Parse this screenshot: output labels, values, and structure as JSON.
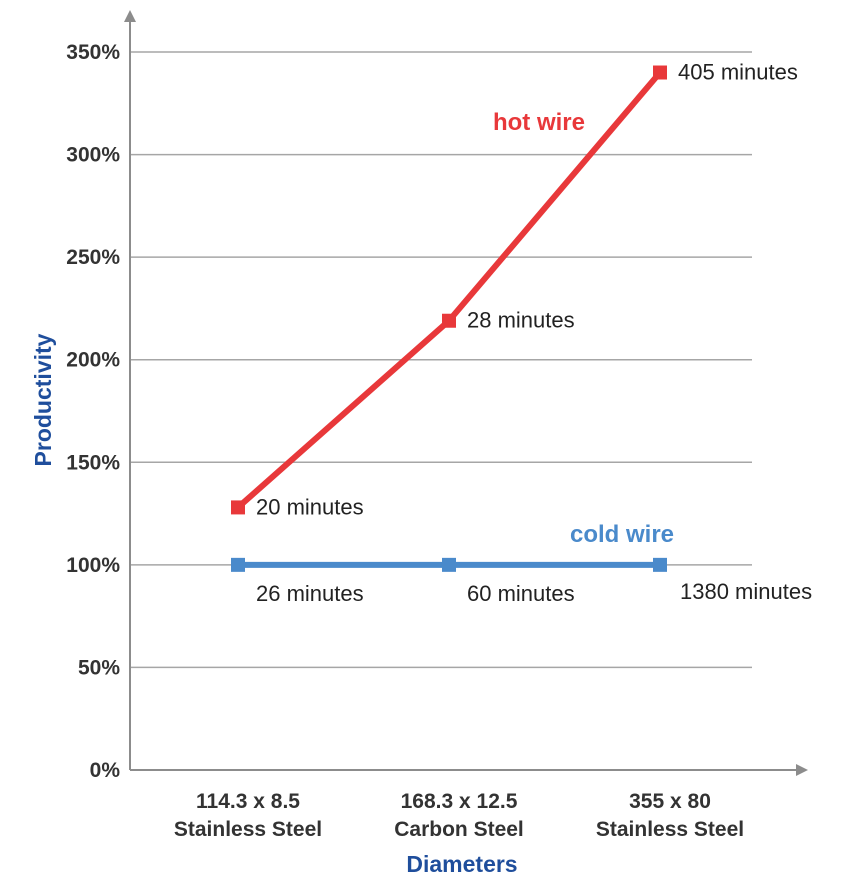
{
  "chart_data": {
    "type": "line",
    "title": "",
    "xlabel": "Diameters",
    "ylabel": "Productivity",
    "ylim": [
      0,
      350
    ],
    "yticks": [
      0,
      50,
      100,
      150,
      200,
      250,
      300,
      350
    ],
    "ytick_labels": [
      "0%",
      "50%",
      "100%",
      "150%",
      "200%",
      "250%",
      "300%",
      "350%"
    ],
    "categories": [
      [
        "114.3 x 8.5",
        "Stainless Steel"
      ],
      [
        "168.3 x 12.5",
        "Carbon Steel"
      ],
      [
        "355 x 80",
        "Stainless Steel"
      ]
    ],
    "grid": true,
    "series": [
      {
        "name": "hot wire",
        "color": "#e8383a",
        "values": [
          128,
          219,
          340
        ],
        "annotations": [
          "20 minutes",
          "28 minutes",
          "405 minutes"
        ]
      },
      {
        "name": "cold wire",
        "color": "#4a8acb",
        "values": [
          100,
          100,
          100
        ],
        "annotations": [
          "26 minutes",
          "60 minutes",
          "1380 minutes"
        ]
      }
    ],
    "colors": {
      "axis_title": "#1f4e9c",
      "grid": "#a6a6a6",
      "axis": "#8c8c8c"
    }
  }
}
